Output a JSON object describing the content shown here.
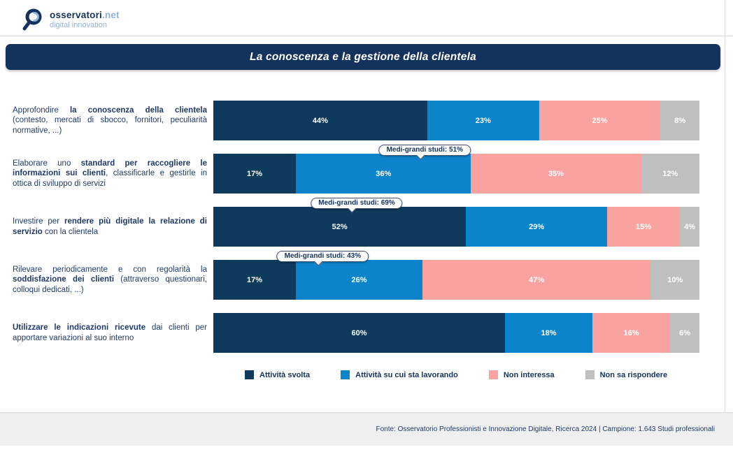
{
  "page": {
    "logo": {
      "brand": "osservatori",
      "brand_suffix": ".net",
      "tagline": "digital innovation"
    },
    "title": "La conoscenza e la gestione della clientela",
    "footer_source": "Fonte: Osservatorio Professionisti e Innovazione Digitale, Ricerca 2024 | Campione: 1.643 Studi professionali"
  },
  "colors": {
    "title_bar_navy": "#14335c",
    "label_text_navy": "#1f3a68",
    "logo_light_blue": "#94b1d6",
    "segment_navy": "#0e3a5c",
    "segment_blue": "#0b84cb",
    "segment_pink": "#f9a3a0",
    "segment_gray": "#bfbfbf",
    "footer_band_gray": "#efefef"
  },
  "chart_data": {
    "type": "bar",
    "orientation": "horizontal",
    "stacked": true,
    "value_unit": "%",
    "title": "La conoscenza e la gestione della clientela",
    "xlim": [
      0,
      100
    ],
    "legend_position": "bottom",
    "series": [
      {
        "name": "Attività svolta",
        "color": "#0e3a5c"
      },
      {
        "name": "Attività su cui sta lavorando",
        "color": "#0b84cb"
      },
      {
        "name": "Non interessa",
        "color": "#f9a3a0"
      },
      {
        "name": "Non sa rispondere",
        "color": "#bfbfbf"
      }
    ],
    "rows": [
      {
        "label_segments": [
          {
            "text": "Approfondire ",
            "bold": false
          },
          {
            "text": "la conoscenza della clientela",
            "bold": true
          },
          {
            "text": " (contesto, mercati di sbocco, fornitori, peculiarità normative, ...)",
            "bold": false
          }
        ],
        "values": [
          44,
          23,
          25,
          8
        ],
        "callout": null
      },
      {
        "label_segments": [
          {
            "text": "Elaborare uno ",
            "bold": false
          },
          {
            "text": "standard per raccogliere le informazioni sui clienti",
            "bold": true
          },
          {
            "text": ", classificarle e gestirle in ottica di sviluppo di servizi",
            "bold": false
          }
        ],
        "values": [
          17,
          36,
          35,
          12
        ],
        "callout": {
          "text": "Medi-grandi studi: 51%",
          "center_pct": 43.5
        }
      },
      {
        "label_segments": [
          {
            "text": "Investire per ",
            "bold": false
          },
          {
            "text": "rendere più digitale la relazione di servizio",
            "bold": true
          },
          {
            "text": " con la clientela",
            "bold": false
          }
        ],
        "values": [
          52,
          29,
          15,
          4
        ],
        "callout": {
          "text": "Medi-grandi studi: 69%",
          "center_pct": 29.5
        }
      },
      {
        "label_segments": [
          {
            "text": "Rilevare periodicamente e con regolarità la ",
            "bold": false
          },
          {
            "text": "soddisfazione dei clienti",
            "bold": true
          },
          {
            "text": " (attraverso questionari, colloqui dedicati, ...)",
            "bold": false
          }
        ],
        "values": [
          17,
          26,
          47,
          10
        ],
        "callout": {
          "text": "Medi-grandi studi: 43%",
          "center_pct": 22.5
        }
      },
      {
        "label_segments": [
          {
            "text": "Utilizzare le indicazioni ricevute",
            "bold": true
          },
          {
            "text": " dai clienti per apportare variazioni al suo interno",
            "bold": false
          }
        ],
        "values": [
          60,
          18,
          16,
          6
        ],
        "callout": null
      }
    ]
  }
}
